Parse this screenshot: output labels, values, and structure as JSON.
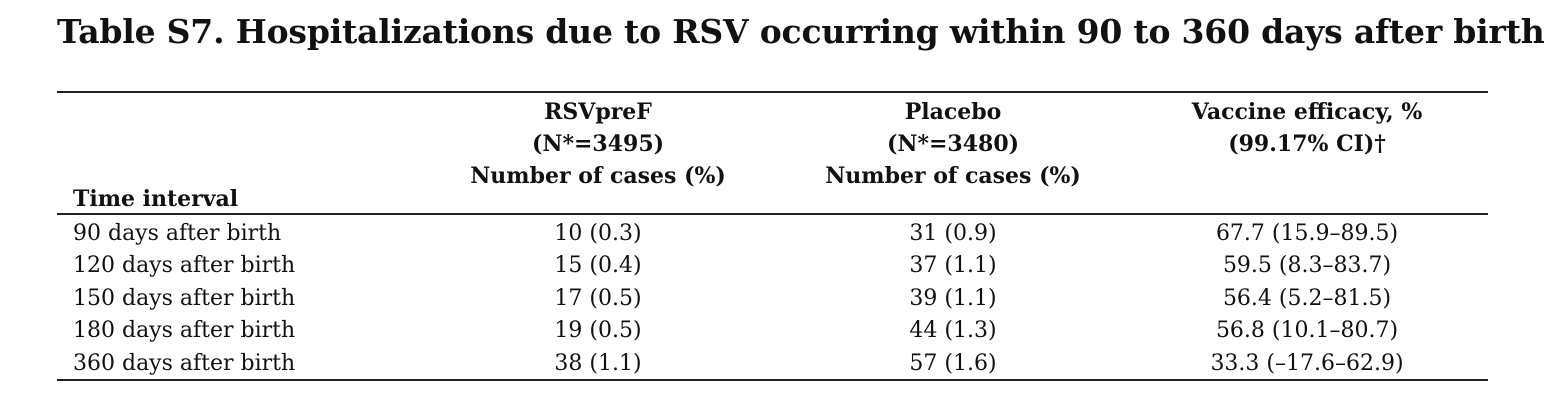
{
  "title": "Table S7. Hospitalizations due to RSV occurring within 90 to 360 days after birth",
  "header": {
    "time_interval": "Time interval",
    "rsvpref": {
      "line1": "RSVpreF",
      "line2": "(N*=3495)",
      "line3": "Number of cases (%)"
    },
    "placebo": {
      "line1": "Placebo",
      "line2": "(N*=3480)",
      "line3": "Number of cases (%)"
    },
    "efficacy": {
      "line1": "Vaccine efficacy, %",
      "line2": "(99.17% CI)†"
    }
  },
  "rows": [
    {
      "interval": "90 days after birth",
      "rsvpref": "10 (0.3)",
      "placebo": "31 (0.9)",
      "efficacy": "67.7 (15.9–89.5)"
    },
    {
      "interval": "120 days after birth",
      "rsvpref": "15 (0.4)",
      "placebo": "37 (1.1)",
      "efficacy": "59.5 (8.3–83.7)"
    },
    {
      "interval": "150 days after birth",
      "rsvpref": "17 (0.5)",
      "placebo": "39 (1.1)",
      "efficacy": "56.4 (5.2–81.5)"
    },
    {
      "interval": "180 days after birth",
      "rsvpref": "19 (0.5)",
      "placebo": "44 (1.3)",
      "efficacy": "56.8 (10.1–80.7)"
    },
    {
      "interval": "360 days after birth",
      "rsvpref": "38 (1.1)",
      "placebo": "57 (1.6)",
      "efficacy": "33.3 (–17.6–62.9)"
    }
  ]
}
